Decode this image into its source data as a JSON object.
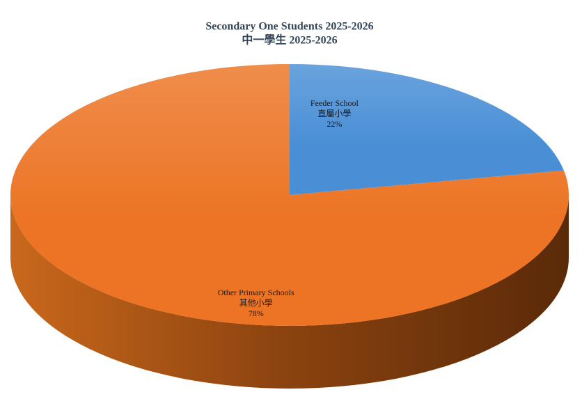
{
  "chart_data": {
    "type": "pie",
    "title": [
      "Secondary One Students 2025-2026",
      "中一學生 2025-2026"
    ],
    "categories": [
      [
        "Feeder School",
        "直屬小學"
      ],
      [
        "Other Primary Schools",
        "其他小學"
      ]
    ],
    "values": [
      22,
      78
    ],
    "value_labels": [
      "22%",
      "78%"
    ],
    "colors": [
      "#4a8fd6",
      "#ec7424"
    ]
  }
}
